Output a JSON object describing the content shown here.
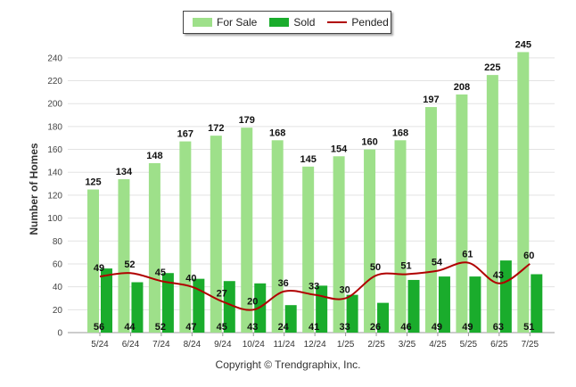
{
  "chart_data": {
    "type": "bar",
    "categories": [
      "5/24",
      "6/24",
      "7/24",
      "8/24",
      "9/24",
      "10/24",
      "11/24",
      "12/24",
      "1/25",
      "2/25",
      "3/25",
      "4/25",
      "5/25",
      "6/25",
      "7/25"
    ],
    "series": [
      {
        "name": "For Sale",
        "type": "bar",
        "color": "#9ee08a",
        "values": [
          125,
          134,
          148,
          167,
          172,
          179,
          168,
          145,
          154,
          160,
          168,
          197,
          208,
          225,
          245
        ]
      },
      {
        "name": "Sold",
        "type": "bar",
        "color": "#1aac2c",
        "values": [
          56,
          44,
          52,
          47,
          45,
          43,
          24,
          41,
          33,
          26,
          46,
          49,
          49,
          63,
          51
        ]
      },
      {
        "name": "Pended",
        "type": "line",
        "color": "#b00000",
        "values": [
          49,
          52,
          45,
          40,
          27,
          20,
          36,
          33,
          30,
          50,
          51,
          54,
          61,
          43,
          60
        ]
      }
    ],
    "ylabel": "Number of Homes",
    "xlabel": "",
    "ylim": [
      0,
      250
    ],
    "yticks": [
      0,
      20,
      40,
      60,
      80,
      100,
      120,
      140,
      160,
      180,
      200,
      220,
      240
    ],
    "grid": true,
    "legend_position": "top-center"
  },
  "copyright": "Copyright © Trendgraphix, Inc."
}
